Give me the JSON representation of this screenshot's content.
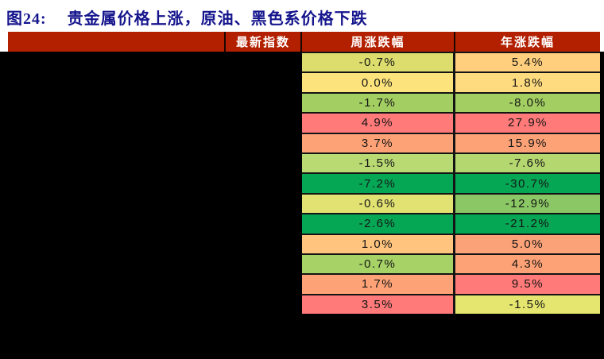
{
  "figure": {
    "title_prefix": "图24:",
    "title_text": "贵金属价格上涨，原油、黑色系价格下跌",
    "title_color": "#15158D"
  },
  "table": {
    "header": {
      "name_label": "",
      "latest_label": "最新指数",
      "weekly_label": "周涨跌幅",
      "yearly_label": "年涨跌幅",
      "bg_color": "#B32000",
      "text_color": "#FFFFFF"
    },
    "rows": [
      {
        "weekly": "-0.7%",
        "weekly_bg": "#DCDD6D",
        "yearly": "5.4%",
        "yearly_bg": "#FFCF7D"
      },
      {
        "weekly": "0.0%",
        "weekly_bg": "#FCE37C",
        "yearly": "1.8%",
        "yearly_bg": "#FFDB80"
      },
      {
        "weekly": "-1.7%",
        "weekly_bg": "#A3CF62",
        "yearly": "-8.0%",
        "yearly_bg": "#A3CF62"
      },
      {
        "weekly": "4.9%",
        "weekly_bg": "#FF7A79",
        "yearly": "27.9%",
        "yearly_bg": "#FF7A79"
      },
      {
        "weekly": "3.7%",
        "weekly_bg": "#FDA276",
        "yearly": "15.9%",
        "yearly_bg": "#FDA276"
      },
      {
        "weekly": "-1.5%",
        "weekly_bg": "#B9D972",
        "yearly": "-7.6%",
        "yearly_bg": "#B5D770"
      },
      {
        "weekly": "-7.2%",
        "weekly_bg": "#06A754",
        "yearly": "-30.7%",
        "yearly_bg": "#06A754"
      },
      {
        "weekly": "-0.6%",
        "weekly_bg": "#E2E273",
        "yearly": "-12.9%",
        "yearly_bg": "#8BC764"
      },
      {
        "weekly": "-2.6%",
        "weekly_bg": "#06A754",
        "yearly": "-21.2%",
        "yearly_bg": "#06A754"
      },
      {
        "weekly": "1.0%",
        "weekly_bg": "#FFC57E",
        "yearly": "5.0%",
        "yearly_bg": "#FCA278"
      },
      {
        "weekly": "-0.7%",
        "weekly_bg": "#A7D266",
        "yearly": "4.3%",
        "yearly_bg": "#FDA276"
      },
      {
        "weekly": "1.7%",
        "weekly_bg": "#FDA276",
        "yearly": "9.5%",
        "yearly_bg": "#FF7A79"
      },
      {
        "weekly": "3.5%",
        "weekly_bg": "#FF7A79",
        "yearly": "-1.5%",
        "yearly_bg": "#E5E66F"
      }
    ]
  },
  "chart_data": {
    "type": "table",
    "title": "图24: 贵金属价格上涨，原油、黑色系价格下跌",
    "columns": [
      "最新指数",
      "周涨跌幅",
      "年涨跌幅"
    ],
    "weekly_change_pct": [
      -0.7,
      0.0,
      -1.7,
      4.9,
      3.7,
      -1.5,
      -7.2,
      -0.6,
      -2.6,
      1.0,
      -0.7,
      1.7,
      3.5
    ],
    "yearly_change_pct": [
      5.4,
      1.8,
      -8.0,
      27.9,
      15.9,
      -7.6,
      -30.7,
      -12.9,
      -21.2,
      5.0,
      4.3,
      9.5,
      -1.5
    ],
    "note_layout": "index-name and latest-index columns are blacked out (redacted); color scale red=up, green=down"
  }
}
